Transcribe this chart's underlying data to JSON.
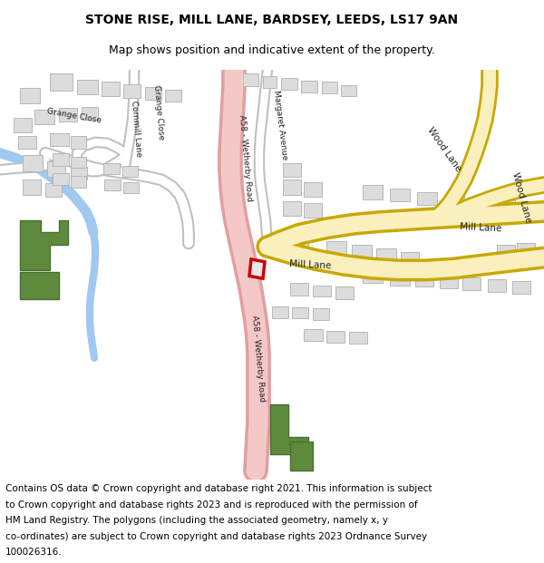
{
  "title": "STONE RISE, MILL LANE, BARDSEY, LEEDS, LS17 9AN",
  "subtitle": "Map shows position and indicative extent of the property.",
  "footer": "Contains OS data © Crown copyright and database right 2021. This information is subject to Crown copyright and database rights 2023 and is reproduced with the permission of HM Land Registry. The polygons (including the associated geometry, namely x, y co-ordinates) are subject to Crown copyright and database rights 2023 Ordnance Survey 100026316.",
  "bg_color": "#ffffff",
  "map_bg": "#ffffff",
  "title_fontsize": 10,
  "subtitle_fontsize": 9,
  "footer_fontsize": 7.5,
  "road_yellow": "#faf0be",
  "road_yellow_border": "#c8a800",
  "road_pink": "#f5c8c8",
  "road_pink_border": "#e0a0a0",
  "road_white": "#ffffff",
  "road_white_border": "#c0c0c0",
  "building_color": "#dcdcdc",
  "building_edge": "#b0b0b0",
  "green_area": "#5d8a3c",
  "green_edge": "#4a7030",
  "water_color": "#a0c8f0",
  "plot_edge": "#cc0000",
  "plot_fill": "#e8e8e8"
}
